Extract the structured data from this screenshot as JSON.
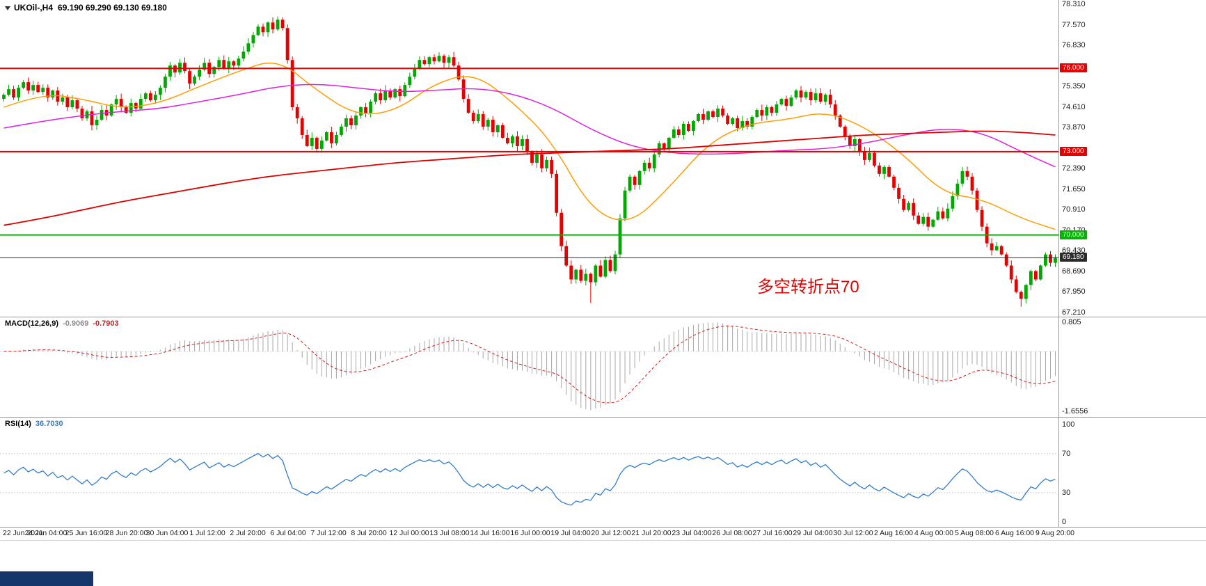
{
  "header": {
    "symbol_timeframe": "UKOil-,H4",
    "quote_ohlc": "69.190 69.290 69.130 69.180"
  },
  "chart_data": [
    {
      "type": "candlestick",
      "symbol": "UKOil-",
      "timeframe": "H4",
      "ohlc_display": {
        "open": "69.190",
        "high": "69.290",
        "low": "69.130",
        "close": "69.180"
      },
      "ylim": [
        67.21,
        78.31
      ],
      "y_ticks": [
        "78.310",
        "77.570",
        "76.830",
        "75.350",
        "74.610",
        "73.870",
        "72.390",
        "71.650",
        "70.910",
        "70.170",
        "69.430",
        "68.690",
        "67.950",
        "67.210"
      ],
      "x_labels": [
        "22 Jun 2021",
        "24 Jun 04:00",
        "25 Jun 16:00",
        "28 Jun 20:00",
        "30 Jun 04:00",
        "1 Jul 12:00",
        "2 Jul 20:00",
        "6 Jul 04:00",
        "7 Jul 12:00",
        "8 Jul 20:00",
        "12 Jul 00:00",
        "13 Jul 08:00",
        "14 Jul 16:00",
        "16 Jul 00:00",
        "19 Jul 04:00",
        "20 Jul 12:00",
        "21 Jul 20:00",
        "23 Jul 04:00",
        "26 Jul 08:00",
        "27 Jul 16:00",
        "29 Jul 04:00",
        "30 Jul 12:00",
        "2 Aug 16:00",
        "4 Aug 00:00",
        "5 Aug 08:00",
        "6 Aug 16:00",
        "9 Aug 20:00"
      ],
      "first_open": 74.9,
      "closes": [
        75.05,
        75.25,
        74.95,
        75.3,
        75.5,
        75.2,
        75.4,
        75.15,
        75.3,
        74.95,
        75.2,
        74.8,
        74.95,
        74.6,
        74.85,
        74.55,
        74.2,
        74.45,
        73.95,
        74.15,
        74.5,
        74.3,
        74.7,
        74.9,
        74.6,
        74.4,
        74.75,
        74.55,
        74.9,
        75.1,
        74.85,
        75.05,
        75.3,
        75.7,
        76.1,
        75.85,
        76.2,
        75.9,
        75.45,
        75.7,
        75.95,
        76.2,
        75.8,
        76.05,
        76.3,
        76.0,
        76.25,
        76.1,
        76.35,
        76.6,
        76.9,
        77.2,
        77.5,
        77.3,
        77.65,
        77.4,
        77.75,
        77.45,
        76.3,
        74.6,
        74.2,
        73.6,
        73.2,
        73.5,
        73.1,
        73.4,
        73.7,
        73.3,
        73.6,
        73.9,
        74.2,
        73.95,
        74.3,
        74.6,
        74.4,
        74.8,
        75.1,
        74.85,
        75.2,
        74.95,
        75.25,
        75.0,
        75.4,
        75.7,
        76.0,
        76.3,
        76.15,
        76.4,
        76.25,
        76.45,
        76.2,
        76.4,
        76.1,
        75.6,
        74.9,
        74.4,
        74.1,
        74.35,
        73.9,
        74.15,
        73.7,
        73.95,
        73.5,
        73.3,
        73.55,
        73.2,
        73.45,
        73.0,
        72.6,
        72.9,
        72.4,
        72.7,
        72.2,
        70.8,
        69.6,
        68.9,
        68.4,
        68.75,
        68.35,
        68.6,
        68.3,
        68.9,
        68.5,
        69.1,
        68.7,
        69.3,
        70.6,
        71.6,
        72.1,
        71.8,
        72.3,
        72.6,
        72.4,
        72.9,
        73.3,
        73.1,
        73.5,
        73.8,
        73.6,
        74.0,
        73.75,
        74.1,
        74.35,
        74.15,
        74.45,
        74.25,
        74.55,
        74.3,
        74.0,
        74.2,
        73.85,
        74.1,
        73.9,
        74.25,
        74.5,
        74.3,
        74.6,
        74.4,
        74.7,
        74.9,
        74.65,
        74.95,
        75.2,
        74.95,
        75.15,
        74.85,
        75.1,
        74.8,
        75.05,
        74.7,
        74.3,
        73.9,
        73.55,
        73.2,
        73.45,
        73.0,
        72.7,
        72.95,
        72.5,
        72.2,
        72.45,
        72.1,
        71.7,
        71.3,
        70.9,
        71.15,
        70.7,
        70.4,
        70.65,
        70.3,
        70.55,
        70.85,
        70.6,
        70.95,
        71.4,
        71.85,
        72.3,
        72.1,
        71.6,
        70.9,
        70.3,
        69.7,
        69.45,
        69.6,
        69.3,
        68.9,
        68.4,
        67.95,
        67.7,
        68.2,
        68.7,
        68.4,
        68.9,
        69.3,
        69.0,
        69.18
      ],
      "wick_overrides": {
        "56": [
          0.12,
          0.05
        ],
        "120": [
          0.05,
          0.75
        ],
        "208": [
          0.05,
          0.28
        ]
      },
      "colors": {
        "up": "#00a800",
        "down": "#e60000"
      },
      "moving_averages": [
        {
          "name": "fast",
          "color": "#ff9c00",
          "width": 1.5,
          "values": [
            74.6,
            75.1,
            74.9,
            74.55,
            74.75,
            75.35,
            75.9,
            76.35,
            75.2,
            74.3,
            74.45,
            75.45,
            75.85,
            74.8,
            73.4,
            70.9,
            70.35,
            71.7,
            73.3,
            74.0,
            74.15,
            74.45,
            73.9,
            72.9,
            71.5,
            71.3,
            70.6,
            70.2
          ]
        },
        {
          "name": "medium",
          "color": "#df20df",
          "width": 1.5,
          "values": [
            73.85,
            74.1,
            74.3,
            74.45,
            74.55,
            74.8,
            75.05,
            75.35,
            75.45,
            75.3,
            75.15,
            75.2,
            75.3,
            75.1,
            74.6,
            73.8,
            73.2,
            72.95,
            72.9,
            72.95,
            73.05,
            73.1,
            73.3,
            73.6,
            73.85,
            73.7,
            73.0,
            72.45
          ]
        },
        {
          "name": "slow",
          "color": "#dd0000",
          "width": 1.8,
          "values": [
            70.35,
            70.6,
            70.9,
            71.2,
            71.45,
            71.7,
            71.95,
            72.15,
            72.3,
            72.45,
            72.6,
            72.7,
            72.8,
            72.9,
            72.95,
            73.0,
            73.05,
            73.1,
            73.2,
            73.3,
            73.4,
            73.5,
            73.6,
            73.65,
            73.7,
            73.75,
            73.7,
            73.6
          ]
        }
      ],
      "levels": [
        {
          "label": "76.000",
          "price": 76.0,
          "color": "#e60000",
          "width": 2
        },
        {
          "label": "73.000",
          "price": 73.0,
          "color": "#e60000",
          "width": 2
        },
        {
          "label": "70.000",
          "price": 70.0,
          "color": "#00b400",
          "width": 2
        },
        {
          "label": "69.180",
          "price": 69.18,
          "color": "#2b2b2b",
          "width": 1
        }
      ],
      "annotation": {
        "text": "多空转折点70",
        "color": "#e60000"
      }
    },
    {
      "type": "macd-histogram",
      "label": "MACD(12,26,9)",
      "value_main": "-0.9069",
      "value_signal": "-0.7903",
      "params": [
        12,
        26,
        9
      ],
      "ylim": [
        -1.6556,
        0.805
      ],
      "y_ticks": [
        "0.805",
        "-1.6556"
      ],
      "colors": {
        "histogram": "#a6a6a6",
        "signal": "#d02020"
      }
    },
    {
      "type": "rsi-line",
      "label": "RSI(14)",
      "value": "36.7030",
      "period": 14,
      "levels": [
        70,
        30
      ],
      "y_ticks": [
        "100",
        "70",
        "30",
        "0"
      ],
      "color": "#2f7ccb"
    }
  ]
}
